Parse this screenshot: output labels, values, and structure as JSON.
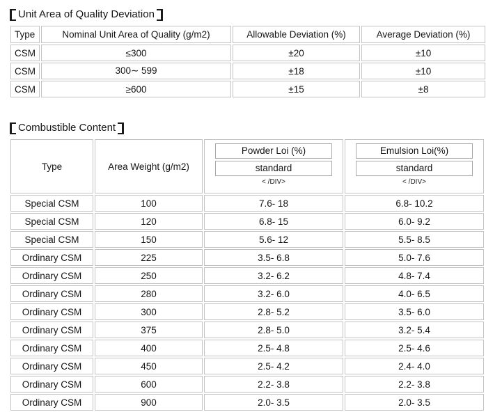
{
  "page": {
    "background": "#ffffff",
    "border_color": "#c3c3c3",
    "inner_box_border_color": "#a8a8a8",
    "text_color": "#141414"
  },
  "table1": {
    "title_full": "【Unit Area of Quality Deviation】",
    "title": "Unit Area of Quality Deviation",
    "headers": [
      "Type",
      "Nominal Unit Area of Quality (g/m2)",
      "Allowable Deviation (%)",
      "Average Deviation (%)"
    ],
    "rows": [
      [
        "CSM",
        "≤300",
        "±20",
        "±10"
      ],
      [
        "CSM",
        "300∼ 599",
        "±18",
        "±10"
      ],
      [
        "CSM",
        "≥600",
        "±15",
        "±8"
      ]
    ]
  },
  "table2": {
    "title_full": "【Combustible Content】",
    "title": "Combustible Content",
    "header": {
      "type_label": "Type",
      "area_weight_label": "Area Weight (g/m2)",
      "powder": {
        "title": "Powder Loi (%)",
        "sub": "standard",
        "tag": "< /DIV>"
      },
      "emulsion": {
        "title": "Emulsion Loi(%)",
        "sub": "standard",
        "tag": "< /DIV>"
      }
    },
    "rows": [
      [
        "Special CSM",
        "100",
        "7.6- 18",
        "6.8- 10.2"
      ],
      [
        "Special CSM",
        "120",
        "6.8- 15",
        "6.0- 9.2"
      ],
      [
        "Special CSM",
        "150",
        "5.6- 12",
        "5.5- 8.5"
      ],
      [
        "Ordinary CSM",
        "225",
        "3.5- 6.8",
        "5.0- 7.6"
      ],
      [
        "Ordinary CSM",
        "250",
        "3.2- 6.2",
        "4.8- 7.4"
      ],
      [
        "Ordinary CSM",
        "280",
        "3.2- 6.0",
        "4.0- 6.5"
      ],
      [
        "Ordinary CSM",
        "300",
        "2.8- 5.2",
        "3.5- 6.0"
      ],
      [
        "Ordinary CSM",
        "375",
        "2.8- 5.0",
        "3.2- 5.4"
      ],
      [
        "Ordinary CSM",
        "400",
        "2.5- 4.8",
        "2.5- 4.6"
      ],
      [
        "Ordinary CSM",
        "450",
        "2.5- 4.2",
        "2.4- 4.0"
      ],
      [
        "Ordinary CSM",
        "600",
        "2.2- 3.8",
        "2.2- 3.8"
      ],
      [
        "Ordinary CSM",
        "900",
        "2.0- 3.5",
        "2.0- 3.5"
      ]
    ]
  }
}
